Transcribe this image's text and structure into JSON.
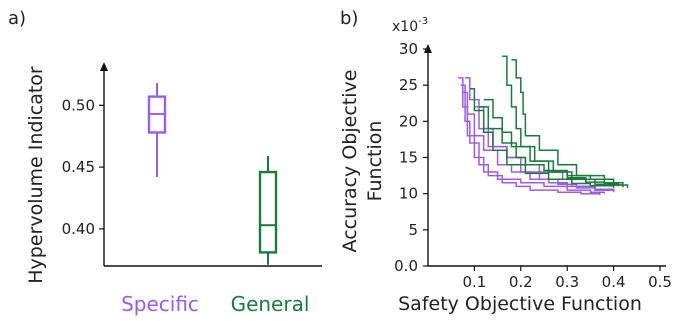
{
  "chart_data": [
    {
      "type": "box",
      "panel_label": "a)",
      "ylabel": "Hypervolume Indicator",
      "ylim": [
        0.37,
        0.535
      ],
      "yticks": [
        0.4,
        0.45,
        0.5
      ],
      "ytick_labels": [
        "0.40",
        "0.45",
        "0.50"
      ],
      "categories": [
        "Specific",
        "General"
      ],
      "colors": [
        "#9b5de5",
        "#1b7a3e"
      ],
      "boxes": [
        {
          "name": "Specific",
          "whisker_low": 0.442,
          "q1": 0.478,
          "median": 0.493,
          "q3": 0.507,
          "whisker_high": 0.518
        },
        {
          "name": "General",
          "whisker_low": 0.371,
          "q1": 0.381,
          "median": 0.403,
          "q3": 0.446,
          "whisker_high": 0.459
        }
      ]
    },
    {
      "type": "line",
      "panel_label": "b)",
      "xlabel": "Safety Objective Function",
      "ylabel": "Accuracy Objective Function",
      "y_multiplier": "x10",
      "y_multiplier_exp": "-3",
      "xlim": [
        0.0,
        0.5
      ],
      "ylim": [
        0,
        30
      ],
      "xticks": [
        0.1,
        0.2,
        0.3,
        0.4,
        0.5
      ],
      "xtick_labels": [
        "0.1",
        "0.2",
        "0.3",
        "0.4",
        "0.5"
      ],
      "yticks": [
        0,
        5,
        10,
        15,
        20,
        25,
        30
      ],
      "ytick_labels": [
        "0.0",
        "5",
        "10",
        "15",
        "20",
        "25",
        "30"
      ],
      "series": [
        {
          "group": "Specific",
          "color": "#9b5de5",
          "x": [
            0.065,
            0.075,
            0.085,
            0.1,
            0.12,
            0.15,
            0.2,
            0.25,
            0.3,
            0.35,
            0.38
          ],
          "y": [
            26,
            22,
            18,
            15,
            13,
            12,
            11.5,
            11,
            10.5,
            10.2,
            10
          ]
        },
        {
          "group": "Specific",
          "color": "#9b5de5",
          "x": [
            0.07,
            0.08,
            0.09,
            0.11,
            0.13,
            0.16,
            0.19,
            0.22,
            0.28,
            0.33,
            0.37
          ],
          "y": [
            25,
            20,
            17,
            14,
            12.5,
            11.5,
            11,
            10.5,
            10.2,
            10,
            9.8
          ]
        },
        {
          "group": "Specific",
          "color": "#9b5de5",
          "x": [
            0.075,
            0.085,
            0.1,
            0.12,
            0.15,
            0.18,
            0.22,
            0.26,
            0.3,
            0.36,
            0.4
          ],
          "y": [
            24,
            21,
            18,
            16,
            14,
            13,
            12,
            11.5,
            11,
            10.6,
            10.3
          ]
        },
        {
          "group": "Specific",
          "color": "#9b5de5",
          "x": [
            0.08,
            0.09,
            0.11,
            0.13,
            0.17,
            0.21,
            0.24,
            0.29,
            0.31,
            0.36,
            0.4
          ],
          "y": [
            26,
            23,
            19,
            16.5,
            15,
            14,
            13,
            12,
            11,
            10.5,
            10.2
          ]
        },
        {
          "group": "Specific",
          "color": "#9b5de5",
          "x": [
            0.1,
            0.12,
            0.14,
            0.17,
            0.2,
            0.24,
            0.28,
            0.32,
            0.36,
            0.4
          ],
          "y": [
            22,
            19,
            16.5,
            15,
            13,
            12,
            11.3,
            10.8,
            10.5,
            10.3
          ]
        },
        {
          "group": "General",
          "color": "#1b7a3e",
          "x": [
            0.11,
            0.13,
            0.16,
            0.19,
            0.21,
            0.25,
            0.3,
            0.35,
            0.4,
            0.43
          ],
          "y": [
            22,
            19,
            17,
            15,
            14,
            13.2,
            12.5,
            12,
            11.2,
            10.8
          ]
        },
        {
          "group": "General",
          "color": "#1b7a3e",
          "x": [
            0.16,
            0.17,
            0.18,
            0.19,
            0.2,
            0.23,
            0.27,
            0.31,
            0.36,
            0.41
          ],
          "y": [
            29,
            25,
            22,
            19,
            16.5,
            14.5,
            13,
            12,
            11.3,
            11
          ]
        },
        {
          "group": "General",
          "color": "#1b7a3e",
          "x": [
            0.18,
            0.19,
            0.2,
            0.205,
            0.21,
            0.24,
            0.28,
            0.32,
            0.38,
            0.42
          ],
          "y": [
            28.5,
            26,
            24,
            21,
            18,
            16,
            14,
            12.5,
            11.5,
            11
          ]
        },
        {
          "group": "General",
          "color": "#1b7a3e",
          "x": [
            0.12,
            0.14,
            0.16,
            0.18,
            0.22,
            0.26,
            0.3,
            0.34,
            0.38,
            0.42
          ],
          "y": [
            23,
            20.5,
            18.5,
            16.5,
            14.5,
            13,
            12.2,
            11.6,
            11.2,
            10.9
          ]
        },
        {
          "group": "General",
          "color": "#1b7a3e",
          "x": [
            0.09,
            0.1,
            0.12,
            0.14,
            0.17,
            0.21,
            0.26,
            0.31,
            0.35,
            0.4
          ],
          "y": [
            24.5,
            21.5,
            18.5,
            16,
            14,
            12.8,
            12,
            11.4,
            11.1,
            10.8
          ]
        }
      ]
    }
  ]
}
